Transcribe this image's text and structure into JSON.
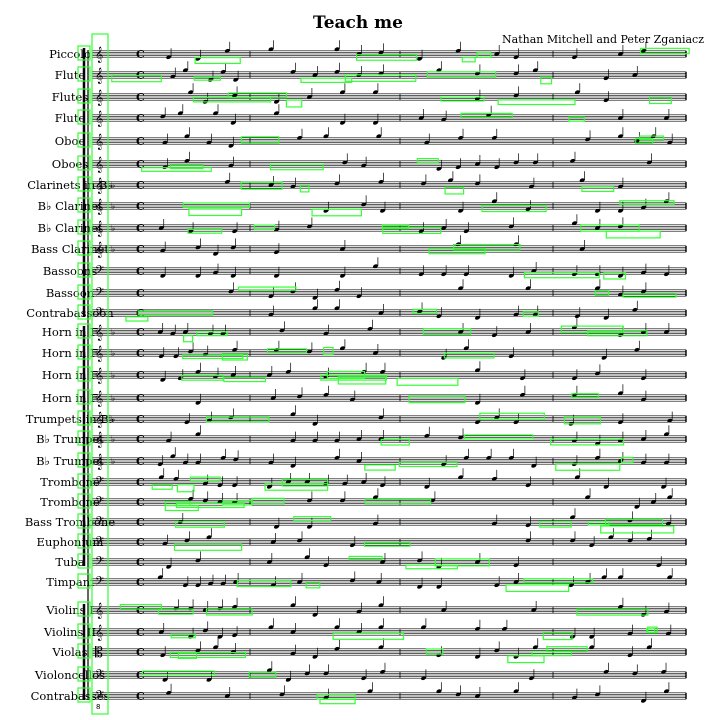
{
  "document": {
    "title": "Teach me",
    "composer": "Nathan Mitchell and Peter Zganiacz",
    "measure_number": "8",
    "time_signature": "C"
  },
  "instruments": [
    {
      "label": "Piccolo",
      "clef": "treble",
      "key": "",
      "group": "woodwinds"
    },
    {
      "label": "Flute",
      "clef": "treble",
      "key": "",
      "group": "woodwinds"
    },
    {
      "label": "Flutes",
      "clef": "treble",
      "key": "",
      "group": "woodwinds"
    },
    {
      "label": "Flute",
      "clef": "treble",
      "key": "",
      "group": "woodwinds"
    },
    {
      "label": "Oboe",
      "clef": "treble",
      "key": "",
      "group": "woodwinds"
    },
    {
      "label": "Oboes",
      "clef": "treble",
      "key": "",
      "group": "woodwinds"
    },
    {
      "label": "Clarinets in B♭",
      "clef": "treble",
      "key": "♭",
      "group": "woodwinds"
    },
    {
      "label": "B♭ Clarinet",
      "clef": "treble",
      "key": "♭",
      "group": "woodwinds"
    },
    {
      "label": "B♭ Clarinet",
      "clef": "treble",
      "key": "♭",
      "group": "woodwinds"
    },
    {
      "label": "Bass Clarinet",
      "clef": "treble",
      "key": "♭",
      "group": "woodwinds"
    },
    {
      "label": "Bassoons",
      "clef": "bass",
      "key": "",
      "group": "woodwinds"
    },
    {
      "label": "Bassoon",
      "clef": "bass",
      "key": "",
      "group": "woodwinds"
    },
    {
      "label": "Contrabassoon",
      "clef": "bass",
      "key": "",
      "group": "woodwinds"
    },
    {
      "label": "Horn in F",
      "clef": "treble",
      "key": "♭",
      "group": "brass"
    },
    {
      "label": "Horn in F",
      "clef": "treble",
      "key": "♭",
      "group": "brass"
    },
    {
      "label": "Horn in F",
      "clef": "treble",
      "key": "♭",
      "group": "brass"
    },
    {
      "label": "Horn in F",
      "clef": "treble",
      "key": "♭",
      "group": "brass"
    },
    {
      "label": "Trumpets in B♭",
      "clef": "treble",
      "key": "♭",
      "group": "brass"
    },
    {
      "label": "B♭ Trumpet",
      "clef": "treble",
      "key": "♭",
      "group": "brass"
    },
    {
      "label": "B♭ Trumpet",
      "clef": "treble",
      "key": "♭",
      "group": "brass"
    },
    {
      "label": "Trombone",
      "clef": "bass",
      "key": "",
      "group": "brass"
    },
    {
      "label": "Trombone",
      "clef": "bass",
      "key": "",
      "group": "brass"
    },
    {
      "label": "Bass Trombone",
      "clef": "bass",
      "key": "",
      "group": "brass"
    },
    {
      "label": "Euphonium",
      "clef": "bass",
      "key": "",
      "group": "brass"
    },
    {
      "label": "Tuba",
      "clef": "bass",
      "key": "",
      "group": "brass"
    },
    {
      "label": "Timpani",
      "clef": "bass",
      "key": "",
      "group": "percussion"
    },
    {
      "label": "Violins I",
      "clef": "treble",
      "key": "",
      "group": "strings"
    },
    {
      "label": "Violins II",
      "clef": "treble",
      "key": "",
      "group": "strings"
    },
    {
      "label": "Violas",
      "clef": "alto",
      "key": "",
      "group": "strings"
    },
    {
      "label": "Violoncellos",
      "clef": "bass",
      "key": "",
      "group": "strings"
    },
    {
      "label": "Contrabasses",
      "clef": "bass",
      "key": "",
      "group": "strings"
    }
  ],
  "glyphs": {
    "treble": "𝄞",
    "bass": "𝄢",
    "alto": "𝄡"
  },
  "colors": {
    "ink": "#000000",
    "annotation": "#33ff33",
    "paper": "#ffffff"
  }
}
